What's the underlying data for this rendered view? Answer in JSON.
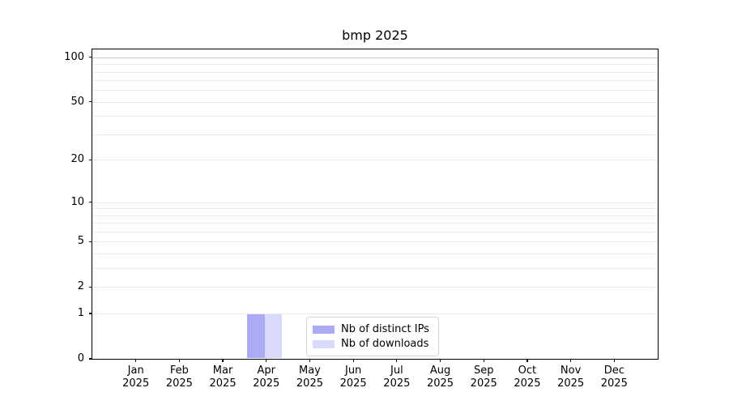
{
  "chart_data": {
    "type": "bar",
    "title": "bmp 2025",
    "categories": [
      "Jan 2025",
      "Feb 2025",
      "Mar 2025",
      "Apr 2025",
      "May 2025",
      "Jun 2025",
      "Jul 2025",
      "Aug 2025",
      "Sep 2025",
      "Oct 2025",
      "Nov 2025",
      "Dec 2025"
    ],
    "series": [
      {
        "name": "Nb of distinct IPs",
        "color": "#aaaaf5",
        "values": [
          0,
          0,
          0,
          1,
          0,
          0,
          0,
          0,
          0,
          0,
          0,
          0
        ]
      },
      {
        "name": "Nb of downloads",
        "color": "#d9d9fa",
        "values": [
          0,
          0,
          0,
          1,
          0,
          0,
          0,
          0,
          0,
          0,
          0,
          0
        ]
      }
    ],
    "xlabel": "",
    "ylabel": "",
    "yscale": "log1p",
    "ylim": [
      0,
      113
    ],
    "yticks": [
      0,
      1,
      2,
      5,
      10,
      20,
      50,
      100
    ],
    "minor_gridlines": [
      3,
      4,
      6,
      7,
      8,
      9,
      30,
      40,
      60,
      70,
      80,
      90
    ],
    "grid": true,
    "legend_position": "lower center",
    "colors": {
      "grid": "#ebebeb",
      "grid_emphasis": "#c6c6c6",
      "axis": "#000000",
      "legend_border": "#d4d4d4",
      "background": "#ffffff"
    }
  }
}
